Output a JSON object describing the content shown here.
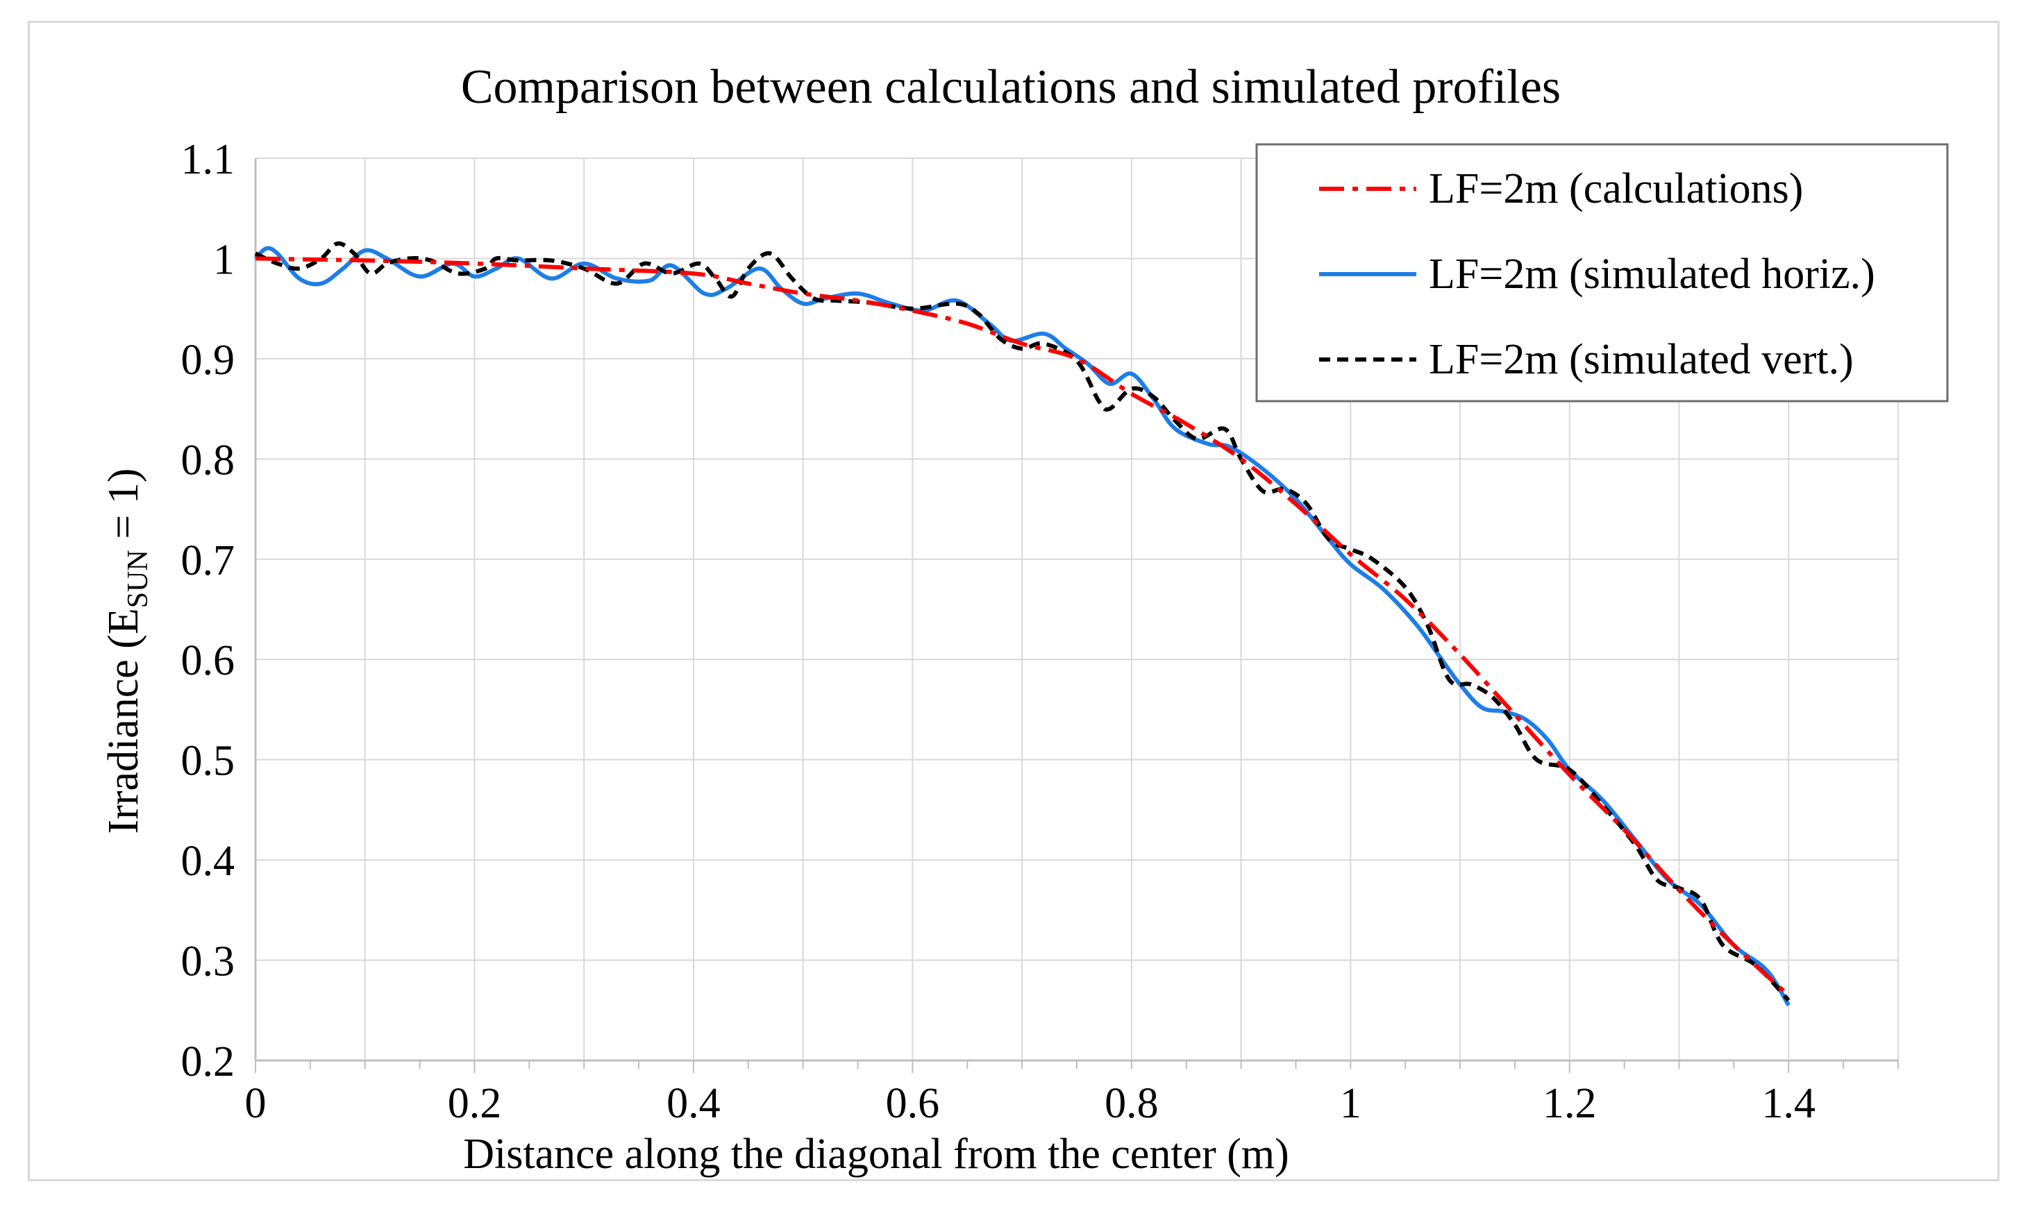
{
  "chart_data": {
    "type": "line",
    "title": "Comparison between calculations and simulated profiles",
    "xlabel": "Distance along the diagonal from the center (m)",
    "ylabel": {
      "main": "Irradiance (E",
      "sub": "SUN",
      "tail": " = 1)"
    },
    "xlim": [
      0,
      1.5
    ],
    "ylim": [
      0.2,
      1.1
    ],
    "x_ticks": [
      0,
      0.2,
      0.4,
      0.6,
      0.8,
      1,
      1.2,
      1.4
    ],
    "x_tick_labels": [
      "0",
      "0.2",
      "0.4",
      "0.6",
      "0.8",
      "1",
      "1.2",
      "1.4"
    ],
    "y_ticks": [
      0.2,
      0.3,
      0.4,
      0.5,
      0.6,
      0.7,
      0.8,
      0.9,
      1,
      1.1
    ],
    "y_tick_labels": [
      "0.2",
      "0.3",
      "0.4",
      "0.5",
      "0.6",
      "0.7",
      "0.8",
      "0.9",
      "1",
      "1.1"
    ],
    "grid": true,
    "legend_position": "top-right",
    "series": [
      {
        "name": "LF=2m (calculations)",
        "color": "#ff0000",
        "dash": "dashdot",
        "points": [
          [
            0,
            1.0
          ],
          [
            0.1,
            0.998
          ],
          [
            0.2,
            0.995
          ],
          [
            0.3,
            0.99
          ],
          [
            0.4,
            0.985
          ],
          [
            0.45,
            0.975
          ],
          [
            0.5,
            0.965
          ],
          [
            0.55,
            0.958
          ],
          [
            0.6,
            0.948
          ],
          [
            0.65,
            0.935
          ],
          [
            0.7,
            0.915
          ],
          [
            0.75,
            0.9
          ],
          [
            0.8,
            0.865
          ],
          [
            0.85,
            0.835
          ],
          [
            0.9,
            0.8
          ],
          [
            0.95,
            0.755
          ],
          [
            1.0,
            0.705
          ],
          [
            1.05,
            0.66
          ],
          [
            1.1,
            0.605
          ],
          [
            1.15,
            0.545
          ],
          [
            1.2,
            0.485
          ],
          [
            1.25,
            0.43
          ],
          [
            1.3,
            0.37
          ],
          [
            1.35,
            0.315
          ],
          [
            1.4,
            0.265
          ]
        ]
      },
      {
        "name": "LF=2m (simulated horiz.)",
        "color": "#1e7ee8",
        "dash": "solid",
        "points": [
          [
            0,
            1.0
          ],
          [
            0.01,
            1.01
          ],
          [
            0.02,
            1.005
          ],
          [
            0.04,
            0.98
          ],
          [
            0.06,
            0.975
          ],
          [
            0.08,
            0.99
          ],
          [
            0.1,
            1.008
          ],
          [
            0.12,
            1.0
          ],
          [
            0.15,
            0.982
          ],
          [
            0.18,
            0.995
          ],
          [
            0.2,
            0.982
          ],
          [
            0.22,
            0.99
          ],
          [
            0.24,
            1.0
          ],
          [
            0.27,
            0.98
          ],
          [
            0.3,
            0.995
          ],
          [
            0.33,
            0.98
          ],
          [
            0.36,
            0.978
          ],
          [
            0.38,
            0.993
          ],
          [
            0.41,
            0.965
          ],
          [
            0.43,
            0.97
          ],
          [
            0.46,
            0.99
          ],
          [
            0.48,
            0.97
          ],
          [
            0.5,
            0.955
          ],
          [
            0.52,
            0.96
          ],
          [
            0.55,
            0.965
          ],
          [
            0.58,
            0.955
          ],
          [
            0.61,
            0.948
          ],
          [
            0.64,
            0.958
          ],
          [
            0.67,
            0.935
          ],
          [
            0.69,
            0.918
          ],
          [
            0.72,
            0.925
          ],
          [
            0.74,
            0.91
          ],
          [
            0.76,
            0.895
          ],
          [
            0.78,
            0.875
          ],
          [
            0.8,
            0.885
          ],
          [
            0.82,
            0.86
          ],
          [
            0.84,
            0.83
          ],
          [
            0.87,
            0.815
          ],
          [
            0.89,
            0.812
          ],
          [
            0.92,
            0.79
          ],
          [
            0.95,
            0.76
          ],
          [
            0.98,
            0.72
          ],
          [
            1.0,
            0.695
          ],
          [
            1.03,
            0.67
          ],
          [
            1.06,
            0.635
          ],
          [
            1.08,
            0.605
          ],
          [
            1.1,
            0.575
          ],
          [
            1.12,
            0.552
          ],
          [
            1.14,
            0.548
          ],
          [
            1.16,
            0.54
          ],
          [
            1.18,
            0.52
          ],
          [
            1.2,
            0.49
          ],
          [
            1.23,
            0.46
          ],
          [
            1.26,
            0.42
          ],
          [
            1.29,
            0.38
          ],
          [
            1.32,
            0.355
          ],
          [
            1.35,
            0.315
          ],
          [
            1.38,
            0.29
          ],
          [
            1.4,
            0.255
          ]
        ]
      },
      {
        "name": "LF=2m (simulated vert.)",
        "color": "#000000",
        "dash": "dashed",
        "points": [
          [
            0,
            1.005
          ],
          [
            0.02,
            0.995
          ],
          [
            0.04,
            0.99
          ],
          [
            0.06,
            1.0
          ],
          [
            0.075,
            1.015
          ],
          [
            0.09,
            1.005
          ],
          [
            0.105,
            0.985
          ],
          [
            0.12,
            0.995
          ],
          [
            0.14,
            1.0
          ],
          [
            0.16,
            0.998
          ],
          [
            0.185,
            0.985
          ],
          [
            0.21,
            0.99
          ],
          [
            0.22,
            1.0
          ],
          [
            0.24,
            0.998
          ],
          [
            0.27,
            0.998
          ],
          [
            0.3,
            0.99
          ],
          [
            0.33,
            0.975
          ],
          [
            0.355,
            0.995
          ],
          [
            0.38,
            0.985
          ],
          [
            0.405,
            0.995
          ],
          [
            0.42,
            0.98
          ],
          [
            0.435,
            0.962
          ],
          [
            0.45,
            0.99
          ],
          [
            0.47,
            1.005
          ],
          [
            0.49,
            0.98
          ],
          [
            0.51,
            0.96
          ],
          [
            0.53,
            0.958
          ],
          [
            0.56,
            0.956
          ],
          [
            0.6,
            0.95
          ],
          [
            0.64,
            0.955
          ],
          [
            0.66,
            0.945
          ],
          [
            0.68,
            0.92
          ],
          [
            0.7,
            0.91
          ],
          [
            0.72,
            0.915
          ],
          [
            0.75,
            0.898
          ],
          [
            0.77,
            0.858
          ],
          [
            0.78,
            0.85
          ],
          [
            0.8,
            0.87
          ],
          [
            0.82,
            0.862
          ],
          [
            0.84,
            0.838
          ],
          [
            0.86,
            0.82
          ],
          [
            0.885,
            0.83
          ],
          [
            0.9,
            0.8
          ],
          [
            0.92,
            0.768
          ],
          [
            0.94,
            0.77
          ],
          [
            0.96,
            0.755
          ],
          [
            0.98,
            0.72
          ],
          [
            1.0,
            0.71
          ],
          [
            1.02,
            0.7
          ],
          [
            1.05,
            0.672
          ],
          [
            1.07,
            0.635
          ],
          [
            1.09,
            0.58
          ],
          [
            1.11,
            0.575
          ],
          [
            1.13,
            0.562
          ],
          [
            1.15,
            0.535
          ],
          [
            1.17,
            0.5
          ],
          [
            1.2,
            0.49
          ],
          [
            1.23,
            0.455
          ],
          [
            1.26,
            0.415
          ],
          [
            1.28,
            0.38
          ],
          [
            1.3,
            0.372
          ],
          [
            1.32,
            0.36
          ],
          [
            1.34,
            0.315
          ],
          [
            1.37,
            0.295
          ],
          [
            1.4,
            0.26
          ]
        ]
      }
    ]
  }
}
